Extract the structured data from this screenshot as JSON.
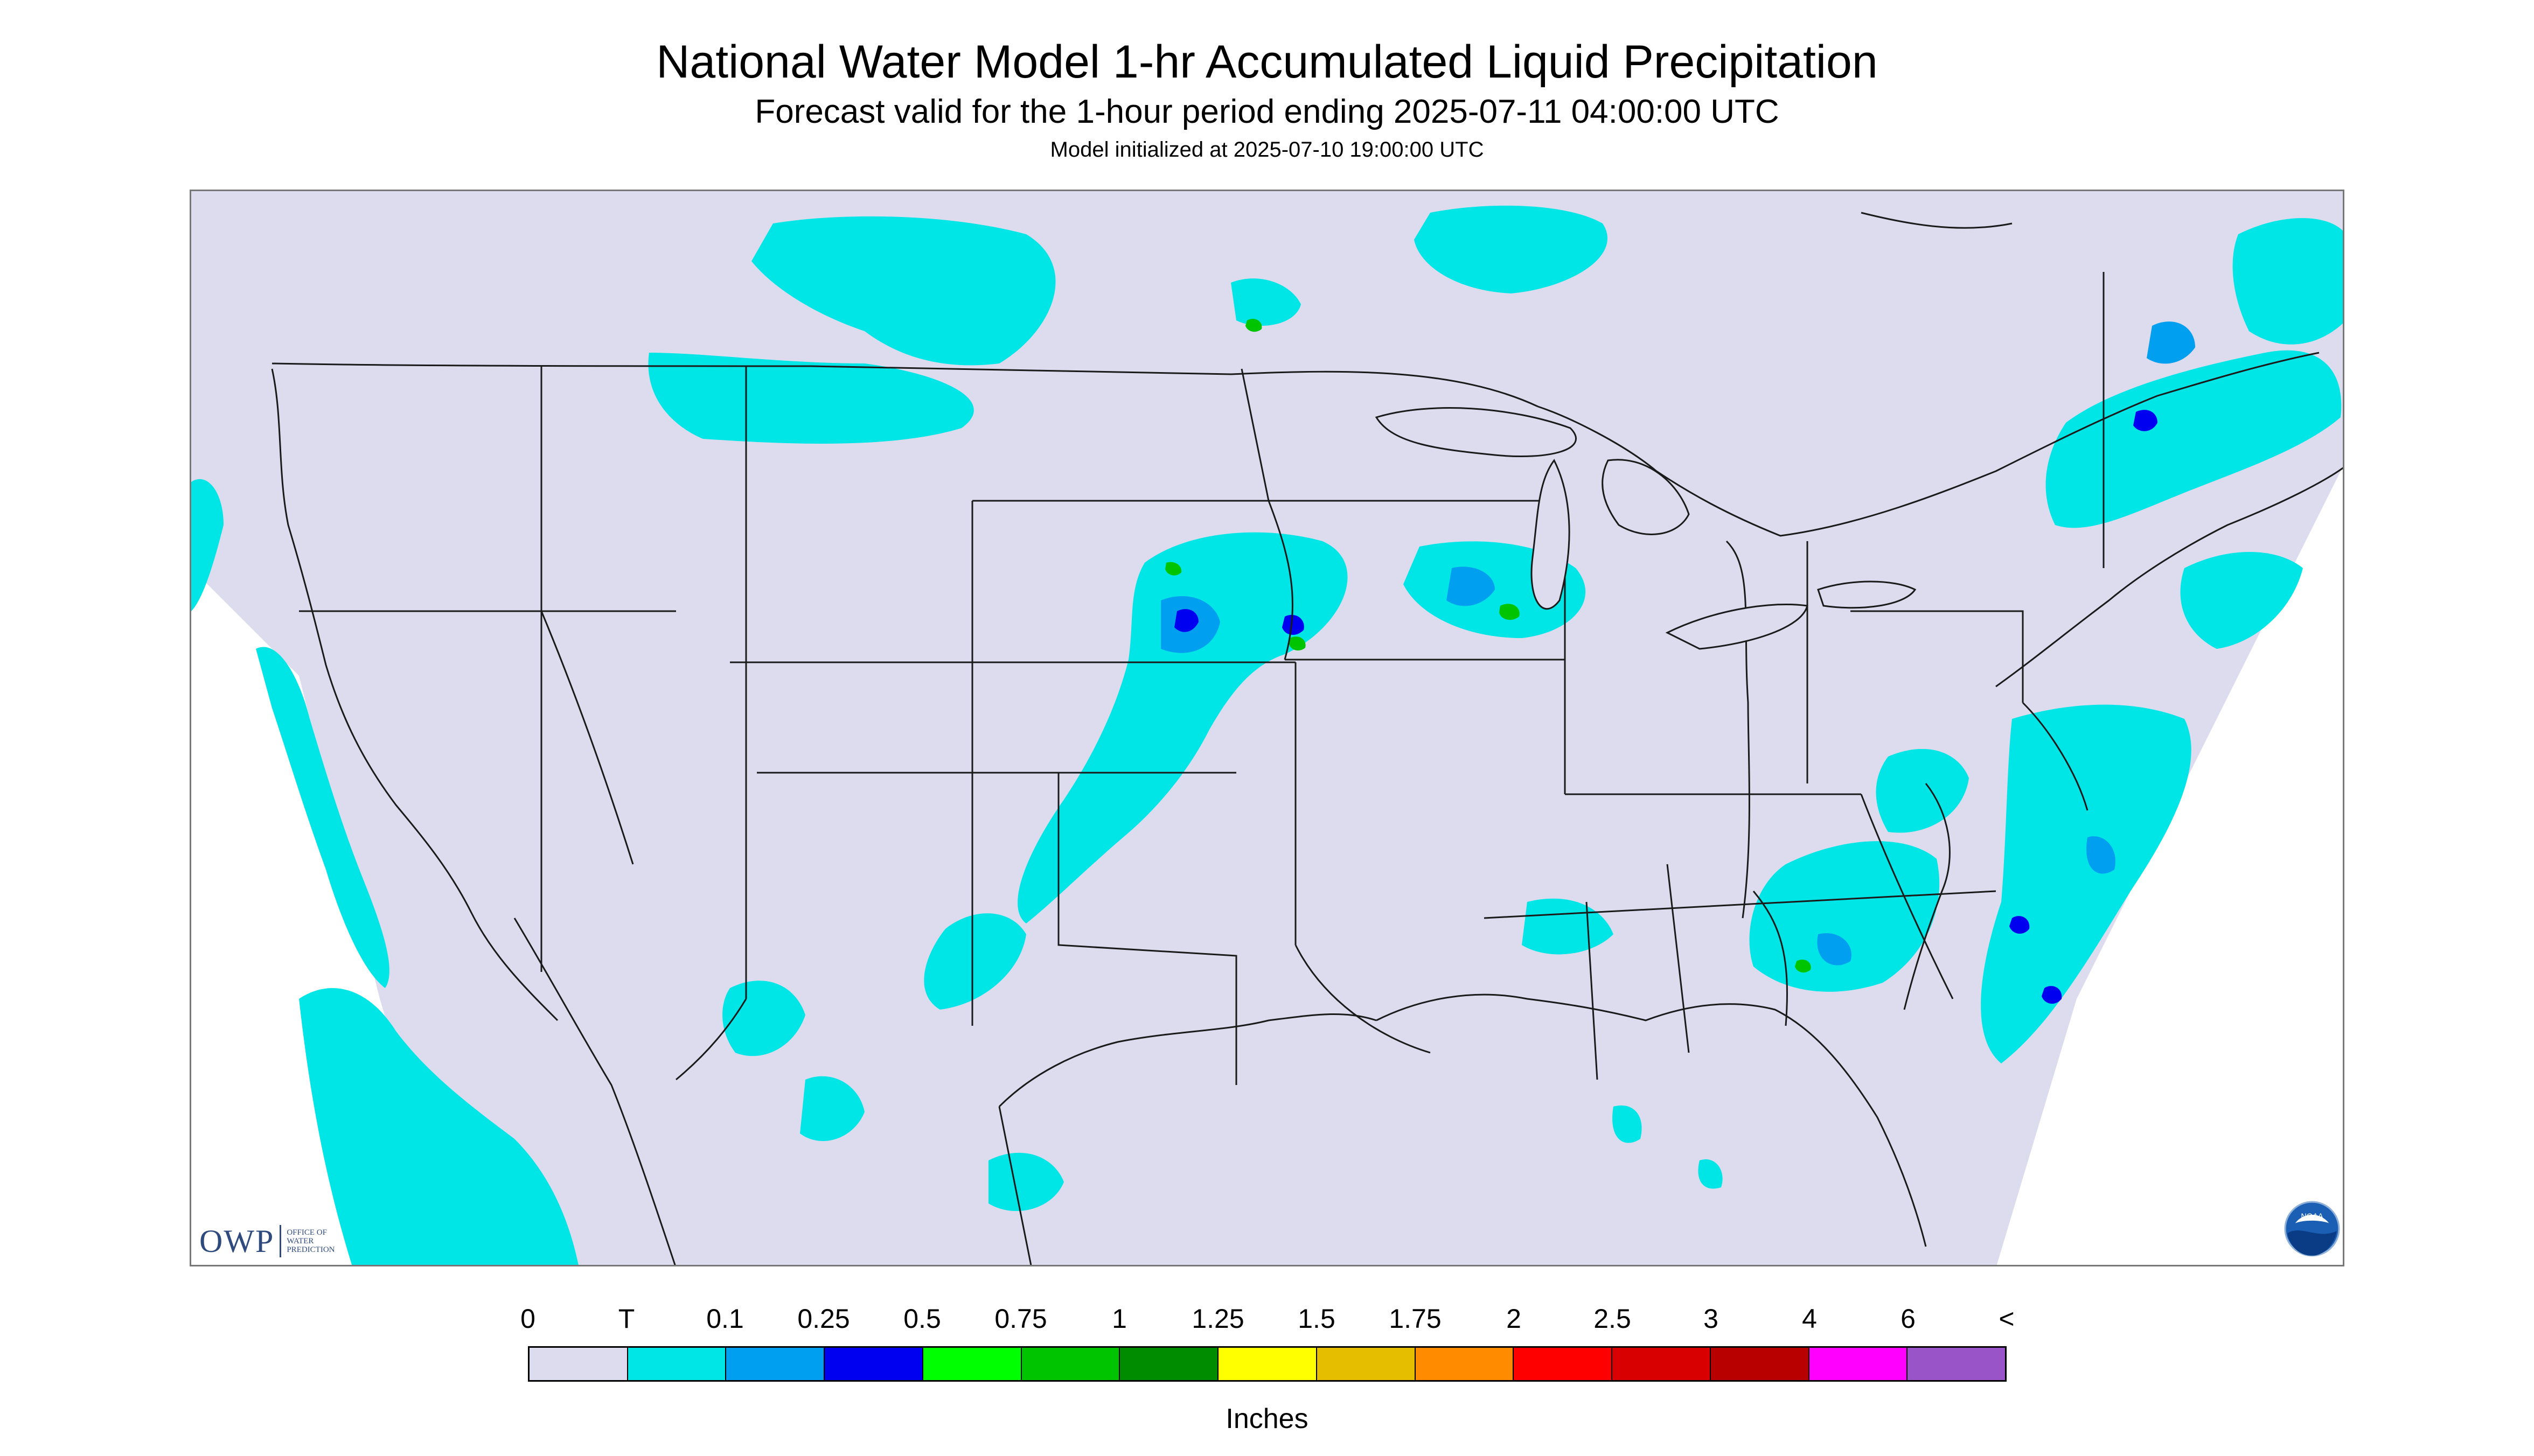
{
  "title": "National Water Model 1-hr Accumulated Liquid Precipitation",
  "subtitle": "Forecast valid for the 1-hour period ending 2025-07-11 04:00:00 UTC",
  "init": "Model initialized at 2025-07-10 19:00:00 UTC",
  "logo_owp": {
    "letters": "OWP",
    "name_line1": "OFFICE OF",
    "name_line2": "WATER",
    "name_line3": "PREDICTION"
  },
  "logo_noaa": "NOAA",
  "legend": {
    "units": "Inches",
    "labels": [
      "0",
      "T",
      "0.1",
      "0.25",
      "0.5",
      "0.75",
      "1",
      "1.25",
      "1.5",
      "1.75",
      "2",
      "2.5",
      "3",
      "4",
      "6",
      "<"
    ],
    "colors": [
      "#dcdcee",
      "#00e5e5",
      "#009ff0",
      "#0000f0",
      "#00ff00",
      "#00c400",
      "#008c00",
      "#ffff00",
      "#e6be00",
      "#ff8c00",
      "#ff0000",
      "#d80000",
      "#b80000",
      "#ff00ff",
      "#9955c8"
    ]
  },
  "map_colors": {
    "background": "#dcdcee",
    "outside": "#ffffff",
    "boundary": "#1a1a1a",
    "trace": "#00e5e5",
    "light": "#009ff0",
    "moderate": "#0000f0",
    "heavy": "#00c400"
  }
}
